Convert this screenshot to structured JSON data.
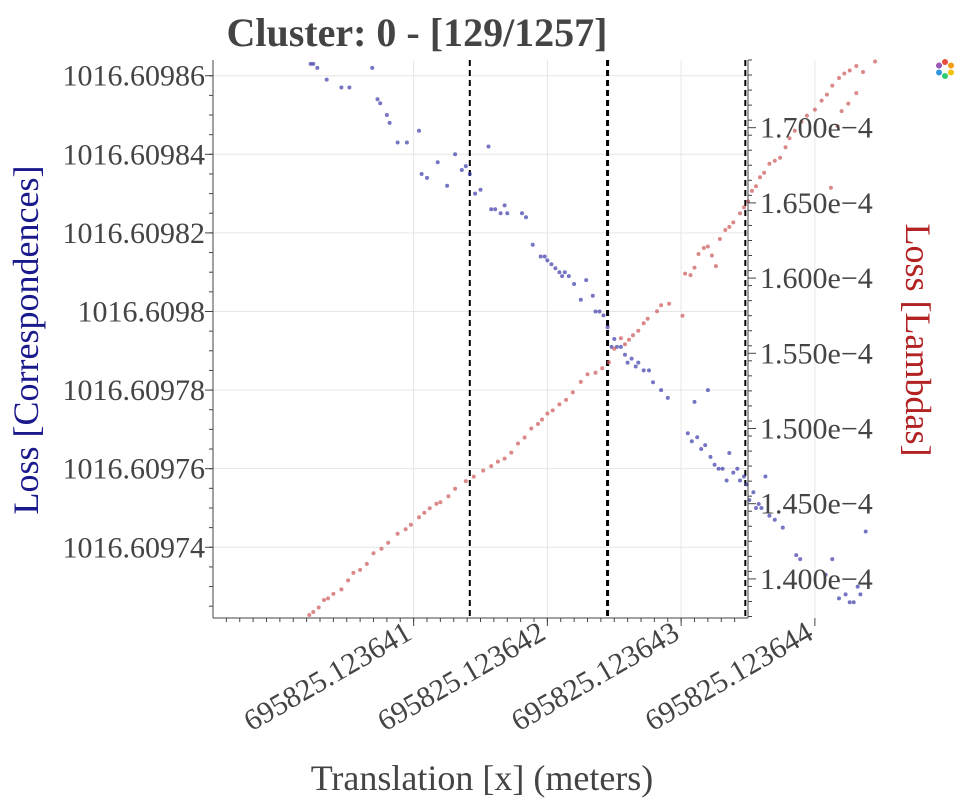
{
  "chart_data": {
    "type": "scatter",
    "title": "Cluster: 0 - [129/1257]",
    "xlabel": "Translation [x] (meters)",
    "ylabel_left": "Loss [Correspondences]",
    "ylabel_right": "Loss [Lambdas]",
    "x_ticks": [
      {
        "value": 695825.123641,
        "label": "695825.123641"
      },
      {
        "value": 695825.123642,
        "label": "695825.123642"
      },
      {
        "value": 695825.123643,
        "label": "695825.123643"
      },
      {
        "value": 695825.123644,
        "label": "695825.123644"
      }
    ],
    "y_left_ticks": [
      {
        "value": 1016.60974,
        "label": "1016.60974"
      },
      {
        "value": 1016.60976,
        "label": "1016.60976"
      },
      {
        "value": 1016.60978,
        "label": "1016.60978"
      },
      {
        "value": 1016.6098,
        "label": "1016.6098"
      },
      {
        "value": 1016.60982,
        "label": "1016.60982"
      },
      {
        "value": 1016.60984,
        "label": "1016.60984"
      },
      {
        "value": 1016.60986,
        "label": "1016.60986"
      }
    ],
    "y_right_ticks": [
      {
        "value": 0.00014,
        "label": "1.400e−4"
      },
      {
        "value": 0.000145,
        "label": "1.450e−4"
      },
      {
        "value": 0.00015,
        "label": "1.500e−4"
      },
      {
        "value": 0.000155,
        "label": "1.550e−4"
      },
      {
        "value": 0.00016,
        "label": "1.600e−4"
      },
      {
        "value": 0.000165,
        "label": "1.650e−4"
      },
      {
        "value": 0.00017,
        "label": "1.700e−4"
      }
    ],
    "xlim_offset_from": 695825.12364,
    "xlim_offset_range": [
      -5e-07,
      3.5e-06
    ],
    "ylim_left": [
      1016.609722,
      1016.609864
    ],
    "ylim_right": [
      0.0001374,
      0.0001745
    ],
    "vlines_offset": [
      {
        "x": 1.42e-06,
        "style": "dashed",
        "width": "thin"
      },
      {
        "x": 2.45e-06,
        "style": "dashed",
        "width": "thick"
      },
      {
        "x": 3.48e-06,
        "style": "dashed",
        "width": "thin"
      }
    ],
    "grid": true,
    "series": [
      {
        "axis": "left",
        "color": "#3a3aaa",
        "points": [
          [
            2.3e-07,
            1016.609863
          ],
          [
            2.5e-07,
            1016.609863
          ],
          [
            2.8e-07,
            1016.609862
          ],
          [
            3.5e-07,
            1016.609859
          ],
          [
            4.6e-07,
            1016.609857
          ],
          [
            5.2e-07,
            1016.609857
          ],
          [
            6.9e-07,
            1016.609862
          ],
          [
            7.3e-07,
            1016.609854
          ],
          [
            7.5e-07,
            1016.609853
          ],
          [
            8e-07,
            1016.60985
          ],
          [
            8.2e-07,
            1016.609848
          ],
          [
            8.8e-07,
            1016.609843
          ],
          [
            9.5e-07,
            1016.609843
          ],
          [
            1.04e-06,
            1016.609846
          ],
          [
            1.06e-06,
            1016.609835
          ],
          [
            1.1e-06,
            1016.609834
          ],
          [
            1.18e-06,
            1016.609838
          ],
          [
            1.25e-06,
            1016.609832
          ],
          [
            1.31e-06,
            1016.60984
          ],
          [
            1.36e-06,
            1016.609836
          ],
          [
            1.39e-06,
            1016.609837
          ],
          [
            1.42e-06,
            1016.609835
          ],
          [
            1.46e-06,
            1016.60983
          ],
          [
            1.5e-06,
            1016.609831
          ],
          [
            1.56e-06,
            1016.609842
          ],
          [
            1.58e-06,
            1016.609826
          ],
          [
            1.61e-06,
            1016.609826
          ],
          [
            1.65e-06,
            1016.609825
          ],
          [
            1.68e-06,
            1016.609827
          ],
          [
            1.7e-06,
            1016.609825
          ],
          [
            1.81e-06,
            1016.609825
          ],
          [
            1.84e-06,
            1016.609824
          ],
          [
            1.89e-06,
            1016.609817
          ],
          [
            1.95e-06,
            1016.609814
          ],
          [
            1.98e-06,
            1016.609814
          ],
          [
            2e-06,
            1016.609813
          ],
          [
            2.03e-06,
            1016.609812
          ],
          [
            2.06e-06,
            1016.609811
          ],
          [
            2.09e-06,
            1016.60981
          ],
          [
            2.11e-06,
            1016.609809
          ],
          [
            2.13e-06,
            1016.60981
          ],
          [
            2.16e-06,
            1016.609809
          ],
          [
            2.2e-06,
            1016.609807
          ],
          [
            2.25e-06,
            1016.609803
          ],
          [
            2.29e-06,
            1016.609808
          ],
          [
            2.34e-06,
            1016.609804
          ],
          [
            2.36e-06,
            1016.6098
          ],
          [
            2.39e-06,
            1016.6098
          ],
          [
            2.42e-06,
            1016.609799
          ],
          [
            2.45e-06,
            1016.609796
          ],
          [
            2.48e-06,
            1016.609791
          ],
          [
            2.5e-06,
            1016.609793
          ],
          [
            2.52e-06,
            1016.609791
          ],
          [
            2.55e-06,
            1016.609791
          ],
          [
            2.58e-06,
            1016.609789
          ],
          [
            2.6e-06,
            1016.609787
          ],
          [
            2.63e-06,
            1016.609788
          ],
          [
            2.66e-06,
            1016.609786
          ],
          [
            2.68e-06,
            1016.609787
          ],
          [
            2.72e-06,
            1016.609785
          ],
          [
            2.76e-06,
            1016.609785
          ],
          [
            2.79e-06,
            1016.609782
          ],
          [
            2.85e-06,
            1016.60978
          ],
          [
            2.9e-06,
            1016.609778
          ],
          [
            3.05e-06,
            1016.609769
          ],
          [
            3.08e-06,
            1016.609767
          ],
          [
            3.1e-06,
            1016.609777
          ],
          [
            3.12e-06,
            1016.609768
          ],
          [
            3.15e-06,
            1016.609765
          ],
          [
            3.18e-06,
            1016.609766
          ],
          [
            3.2e-06,
            1016.60978
          ],
          [
            3.22e-06,
            1016.609763
          ],
          [
            3.25e-06,
            1016.609761
          ],
          [
            3.28e-06,
            1016.60976
          ],
          [
            3.31e-06,
            1016.60976
          ],
          [
            3.34e-06,
            1016.609757
          ],
          [
            3.36e-06,
            1016.609764
          ],
          [
            3.39e-06,
            1016.609759
          ],
          [
            3.42e-06,
            1016.60976
          ],
          [
            3.44e-06,
            1016.609757
          ],
          [
            3.47e-06,
            1016.609758
          ],
          [
            3.49e-06,
            1016.609756
          ],
          [
            3.51e-06,
            1016.609752
          ],
          [
            3.54e-06,
            1016.609754
          ],
          [
            3.56e-06,
            1016.60975
          ],
          [
            3.58e-06,
            1016.609751
          ],
          [
            3.6e-06,
            1016.60975
          ],
          [
            3.63e-06,
            1016.609758
          ],
          [
            3.66e-06,
            1016.609748
          ],
          [
            3.7e-06,
            1016.609747
          ],
          [
            3.76e-06,
            1016.609745
          ],
          [
            3.86e-06,
            1016.609738
          ],
          [
            3.89e-06,
            1016.609737
          ],
          [
            4.08e-06,
            1016.609733
          ],
          [
            4.13e-06,
            1016.609737
          ],
          [
            4.18e-06,
            1016.609727
          ],
          [
            4.23e-06,
            1016.609728
          ],
          [
            4.26e-06,
            1016.609726
          ],
          [
            4.29e-06,
            1016.609726
          ],
          [
            4.32e-06,
            1016.60973
          ],
          [
            4.34e-06,
            1016.609728
          ],
          [
            4.38e-06,
            1016.609744
          ]
        ]
      },
      {
        "axis": "right",
        "color": "#cc5555",
        "points": [
          [
            2.2e-07,
            0.0001376
          ],
          [
            2.5e-07,
            0.0001378
          ],
          [
            2.9e-07,
            0.0001381
          ],
          [
            3.3e-07,
            0.0001386
          ],
          [
            3.6e-07,
            0.0001387
          ],
          [
            4e-07,
            0.000139
          ],
          [
            4.6e-07,
            0.0001393
          ],
          [
            5.1e-07,
            0.0001399
          ],
          [
            5.5e-07,
            0.0001404
          ],
          [
            6e-07,
            0.0001406
          ],
          [
            6.5e-07,
            0.000141
          ],
          [
            7e-07,
            0.0001417
          ],
          [
            7.6e-07,
            0.000142
          ],
          [
            8.1e-07,
            0.0001424
          ],
          [
            8.8e-07,
            0.000143
          ],
          [
            9.4e-07,
            0.0001433
          ],
          [
            9.8e-07,
            0.0001436
          ],
          [
            1.04e-06,
            0.0001441
          ],
          [
            1.08e-06,
            0.0001444
          ],
          [
            1.12e-06,
            0.0001447
          ],
          [
            1.17e-06,
            0.000145
          ],
          [
            1.2e-06,
            0.0001451
          ],
          [
            1.26e-06,
            0.0001455
          ],
          [
            1.31e-06,
            0.000146
          ],
          [
            1.39e-06,
            0.0001465
          ],
          [
            1.45e-06,
            0.0001468
          ],
          [
            1.52e-06,
            0.0001472
          ],
          [
            1.58e-06,
            0.0001475
          ],
          [
            1.63e-06,
            0.0001478
          ],
          [
            1.68e-06,
            0.000148
          ],
          [
            1.73e-06,
            0.0001484
          ],
          [
            1.78e-06,
            0.000149
          ],
          [
            1.83e-06,
            0.0001494
          ],
          [
            1.88e-06,
            0.00015
          ],
          [
            1.93e-06,
            0.0001503
          ],
          [
            1.96e-06,
            0.0001506
          ],
          [
            2e-06,
            0.000151
          ],
          [
            2.04e-06,
            0.0001512
          ],
          [
            2.09e-06,
            0.0001516
          ],
          [
            2.14e-06,
            0.0001519
          ],
          [
            2.19e-06,
            0.0001524
          ],
          [
            2.25e-06,
            0.0001531
          ],
          [
            2.3e-06,
            0.0001536
          ],
          [
            2.36e-06,
            0.0001537
          ],
          [
            2.41e-06,
            0.000154
          ],
          [
            2.46e-06,
            0.0001544
          ],
          [
            2.5e-06,
            0.0001553
          ],
          [
            2.55e-06,
            0.000156
          ],
          [
            2.58e-06,
            0.0001556
          ],
          [
            2.61e-06,
            0.0001559
          ],
          [
            2.64e-06,
            0.0001562
          ],
          [
            2.68e-06,
            0.0001565
          ],
          [
            2.72e-06,
            0.000157
          ],
          [
            2.75e-06,
            0.0001573
          ],
          [
            2.82e-06,
            0.0001578
          ],
          [
            2.85e-06,
            0.0001582
          ],
          [
            2.91e-06,
            0.0001583
          ],
          [
            3.01e-06,
            0.0001575
          ],
          [
            3.03e-06,
            0.0001603
          ],
          [
            3.07e-06,
            0.0001602
          ],
          [
            3.1e-06,
            0.0001607
          ],
          [
            3.13e-06,
            0.0001616
          ],
          [
            3.17e-06,
            0.000162
          ],
          [
            3.2e-06,
            0.0001621
          ],
          [
            3.23e-06,
            0.0001615
          ],
          [
            3.26e-06,
            0.0001608
          ],
          [
            3.29e-06,
            0.0001626
          ],
          [
            3.33e-06,
            0.0001632
          ],
          [
            3.36e-06,
            0.0001634
          ],
          [
            3.39e-06,
            0.0001637
          ],
          [
            3.44e-06,
            0.0001643
          ],
          [
            3.47e-06,
            0.0001647
          ],
          [
            3.5e-06,
            0.0001651
          ],
          [
            3.53e-06,
            0.0001658
          ],
          [
            3.56e-06,
            0.0001661
          ],
          [
            3.59e-06,
            0.0001667
          ],
          [
            3.62e-06,
            0.000167
          ],
          [
            3.66e-06,
            0.0001676
          ],
          [
            3.7e-06,
            0.0001678
          ],
          [
            3.74e-06,
            0.000168
          ],
          [
            3.78e-06,
            0.0001687
          ],
          [
            3.81e-06,
            0.0001693
          ],
          [
            3.85e-06,
            0.0001698
          ],
          [
            3.9e-06,
            0.0001704
          ],
          [
            3.94e-06,
            0.0001708
          ],
          [
            4e-06,
            0.0001712
          ],
          [
            4.05e-06,
            0.0001718
          ],
          [
            4.09e-06,
            0.0001722
          ],
          [
            4.13e-06,
            0.0001728
          ],
          [
            4.18e-06,
            0.0001733
          ],
          [
            4.22e-06,
            0.0001736
          ],
          [
            4.26e-06,
            0.0001738
          ],
          [
            4.31e-06,
            0.0001741
          ],
          [
            4.36e-06,
            0.0001737
          ],
          [
            4.12e-06,
            0.000166
          ],
          [
            4.17e-06,
            0.0001701
          ],
          [
            4.2e-06,
            0.0001711
          ],
          [
            4.25e-06,
            0.0001716
          ],
          [
            4.31e-06,
            0.0001723
          ],
          [
            4.45e-06,
            0.0001744
          ]
        ]
      }
    ]
  },
  "toolbar": {
    "icon": "plotly-logo-icon"
  }
}
